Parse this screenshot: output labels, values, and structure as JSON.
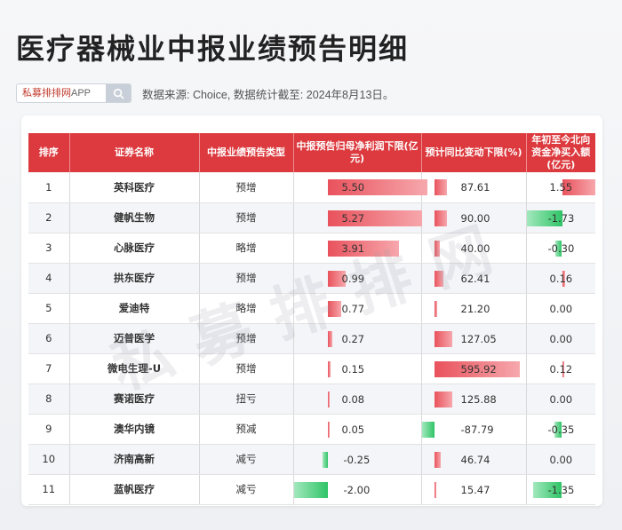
{
  "page": {
    "title": "医疗器械业中报业绩预告明细",
    "source_text": "数据来源: Choice, 数据统计截至: 2024年8月13日。"
  },
  "brand": {
    "name": "私募排排网",
    "suffix": "APP",
    "icon": "search-icon",
    "color": "#c0392b"
  },
  "watermark": "私募排排网",
  "colors": {
    "header": "#dc3a3e",
    "positive": "#e9525c",
    "negative": "#2fc466"
  },
  "table": {
    "headers": [
      "排序",
      "证券名称",
      "中报业绩预告类型",
      "中报预告归母净利润下限(亿元)",
      "预计同比变动下限(%)",
      "年初至今北向资金净买入额(亿元)"
    ],
    "rows": [
      {
        "rank": "1",
        "name": "英科医疗",
        "type": "预增",
        "profit": "5.50",
        "change": "87.61",
        "flow": "1.55"
      },
      {
        "rank": "2",
        "name": "健帆生物",
        "type": "预增",
        "profit": "5.27",
        "change": "90.00",
        "flow": "-1.73"
      },
      {
        "rank": "3",
        "name": "心脉医疗",
        "type": "略增",
        "profit": "3.91",
        "change": "40.00",
        "flow": "-0.30"
      },
      {
        "rank": "4",
        "name": "拱东医疗",
        "type": "预增",
        "profit": "0.99",
        "change": "62.41",
        "flow": "0.16"
      },
      {
        "rank": "5",
        "name": "爱迪特",
        "type": "略增",
        "profit": "0.77",
        "change": "21.20",
        "flow": "0.00"
      },
      {
        "rank": "6",
        "name": "迈普医学",
        "type": "预增",
        "profit": "0.27",
        "change": "127.05",
        "flow": "0.00"
      },
      {
        "rank": "7",
        "name": "微电生理-U",
        "type": "预增",
        "profit": "0.15",
        "change": "595.92",
        "flow": "0.12"
      },
      {
        "rank": "8",
        "name": "赛诺医疗",
        "type": "扭亏",
        "profit": "0.08",
        "change": "125.88",
        "flow": "0.00"
      },
      {
        "rank": "9",
        "name": "澳华内镜",
        "type": "预减",
        "profit": "0.05",
        "change": "-87.79",
        "flow": "-0.35"
      },
      {
        "rank": "10",
        "name": "济南高新",
        "type": "减亏",
        "profit": "-0.25",
        "change": "46.74",
        "flow": "0.00"
      },
      {
        "rank": "11",
        "name": "蓝帆医疗",
        "type": "减亏",
        "profit": "-2.00",
        "change": "15.47",
        "flow": "-1.35"
      }
    ]
  }
}
